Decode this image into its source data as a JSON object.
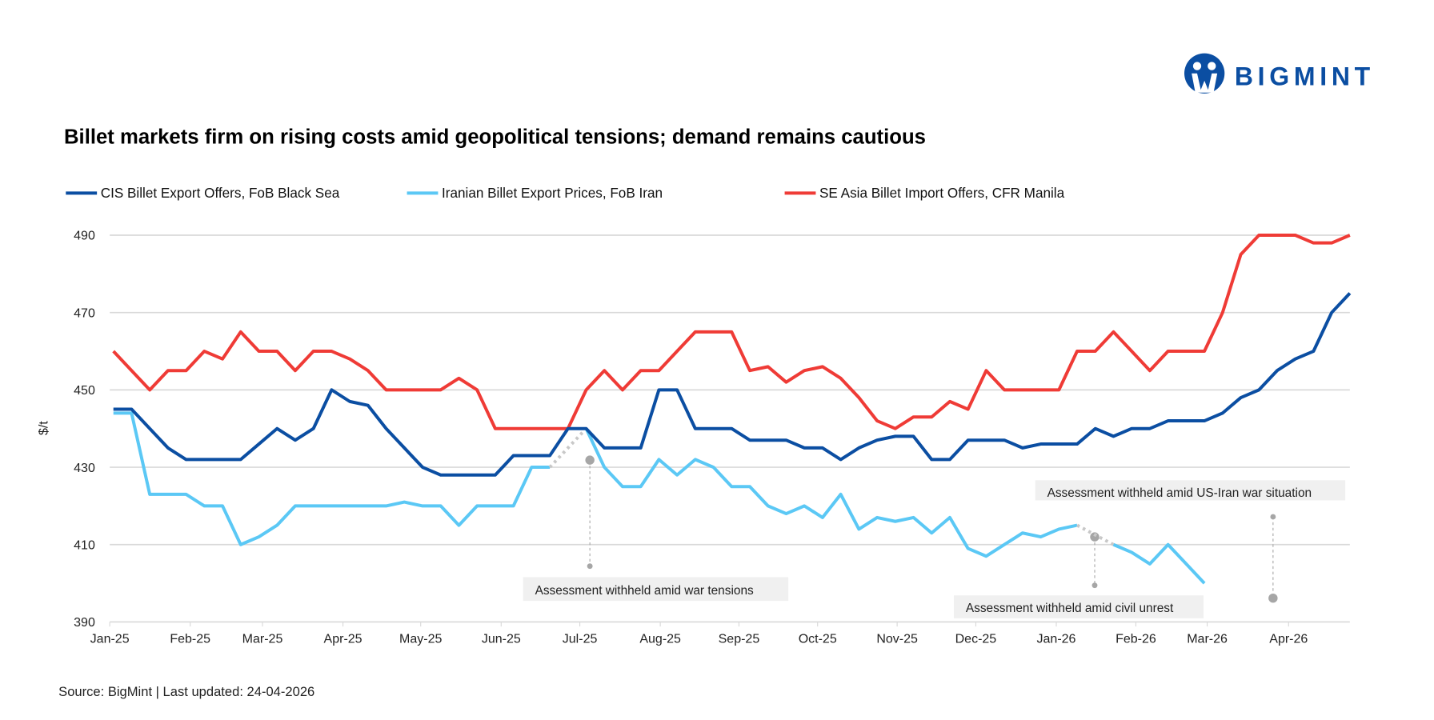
{
  "brand": {
    "name": "BIGMINT",
    "color": "#0b4ea2"
  },
  "chart_data": {
    "type": "line",
    "title": "Billet markets firm on rising costs amid geopolitical tensions; demand remains cautious",
    "ylabel": "$/t",
    "xlabel": "",
    "ylim": [
      390,
      490
    ],
    "yticks": [
      390,
      410,
      430,
      450,
      470,
      490
    ],
    "x_tick_labels": [
      "Jan-25",
      "Feb-25",
      "Mar-25",
      "Apr-25",
      "May-25",
      "Jun-25",
      "Jul-25",
      "Aug-25",
      "Sep-25",
      "Oct-25",
      "Nov-25",
      "Dec-25",
      "Jan-26",
      "Feb-26",
      "Mar-26",
      "Apr-26"
    ],
    "frequency": "weekly",
    "grid": true,
    "legend_position": "top",
    "series": [
      {
        "name": "CIS Billet Export Offers, FoB Black Sea",
        "color": "#0b4ea2",
        "values": [
          445,
          445,
          440,
          435,
          432,
          432,
          432,
          432,
          436,
          440,
          437,
          440,
          450,
          447,
          446,
          440,
          435,
          430,
          428,
          428,
          428,
          428,
          433,
          433,
          433,
          440,
          440,
          435,
          435,
          435,
          450,
          450,
          440,
          440,
          440,
          437,
          437,
          437,
          435,
          435,
          432,
          435,
          437,
          438,
          438,
          432,
          432,
          437,
          437,
          437,
          435,
          436,
          436,
          436,
          440,
          438,
          440,
          440,
          442,
          442,
          442,
          444,
          448,
          450,
          455,
          458,
          460,
          470,
          475
        ]
      },
      {
        "name": "Iranian Billet Export Prices, FoB Iran",
        "color": "#5bc8f5",
        "values": [
          444,
          444,
          423,
          423,
          423,
          420,
          420,
          410,
          412,
          415,
          420,
          420,
          420,
          420,
          420,
          420,
          421,
          420,
          420,
          415,
          420,
          420,
          420,
          430,
          430,
          null,
          440,
          430,
          425,
          425,
          432,
          428,
          432,
          430,
          425,
          425,
          420,
          418,
          420,
          417,
          423,
          414,
          417,
          416,
          417,
          413,
          417,
          409,
          407,
          410,
          413,
          412,
          414,
          415,
          null,
          410,
          408,
          405,
          410,
          405,
          400,
          null,
          null,
          null,
          null,
          null,
          null,
          null,
          null
        ]
      },
      {
        "name": "SE Asia Billet Import Offers, CFR Manila",
        "color": "#ef3b36",
        "values": [
          460,
          455,
          450,
          455,
          455,
          460,
          458,
          465,
          460,
          460,
          455,
          460,
          460,
          458,
          455,
          450,
          450,
          450,
          450,
          453,
          450,
          440,
          440,
          440,
          440,
          440,
          450,
          455,
          450,
          455,
          455,
          460,
          465,
          465,
          465,
          455,
          456,
          452,
          455,
          456,
          453,
          448,
          442,
          440,
          443,
          443,
          447,
          445,
          455,
          450,
          450,
          450,
          450,
          460,
          460,
          465,
          460,
          455,
          460,
          460,
          460,
          470,
          485,
          490,
          490,
          490,
          488,
          488,
          490
        ]
      }
    ],
    "annotations": [
      {
        "text": "Assessment withheld amid  war tensions"
      },
      {
        "text": "Assessment withheld amid civil unrest"
      },
      {
        "text": "Assessment withheld amid US-Iran war situation"
      }
    ]
  },
  "footer": {
    "source": "Source: BigMint | Last updated: 24-04-2026"
  }
}
